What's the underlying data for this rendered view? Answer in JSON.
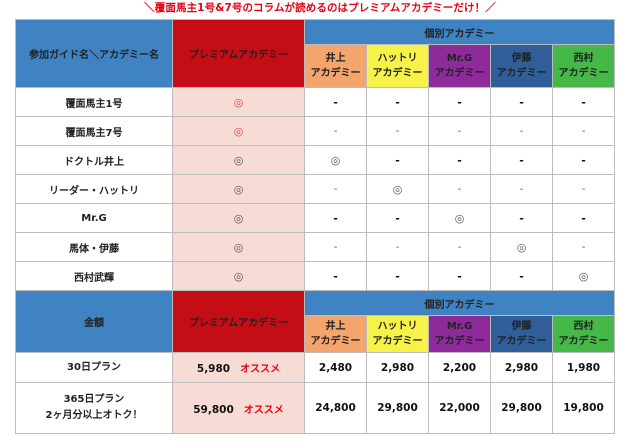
{
  "headline": "＼覆面馬主1号&7号のコラムが読めるのはプレミアムアカデミーだけ！／",
  "section1": {
    "corner_header": "参加ガイド名＼アカデミー名",
    "premium_header": "プレミアムアカデミー",
    "individual_header": "個別アカデミー",
    "categories": [
      {
        "line1": "井上",
        "line2": "アカデミー",
        "color": "#f4a46d"
      },
      {
        "line1": "ハットリ",
        "line2": "アカデミー",
        "color": "#f6f24a"
      },
      {
        "line1": "Mr.G",
        "line2": "アカデミー",
        "color": "#8e2a9a"
      },
      {
        "line1": "伊藤",
        "line2": "アカデミー",
        "color": "#2f5e99"
      },
      {
        "line1": "西村",
        "line2": "アカデミー",
        "color": "#46b848"
      }
    ],
    "rows": [
      {
        "label": "覆面馬主1号",
        "premium": "◎",
        "cells": [
          "-",
          "-",
          "-",
          "-",
          "-"
        ]
      },
      {
        "label": "覆面馬主7号",
        "premium": "◎",
        "cells": [
          "-",
          "-",
          "-",
          "-",
          "-"
        ]
      },
      {
        "label": "ドクトル井上",
        "premium": "◎",
        "cells": [
          "◎",
          "-",
          "-",
          "-",
          "-"
        ]
      },
      {
        "label": "リーダー・ハットリ",
        "premium": "◎",
        "cells": [
          "-",
          "◎",
          "-",
          "-",
          "-"
        ]
      },
      {
        "label": "Mr.G",
        "premium": "◎",
        "cells": [
          "-",
          "-",
          "◎",
          "-",
          "-"
        ]
      },
      {
        "label": "馬体・伊藤",
        "premium": "◎",
        "cells": [
          "-",
          "-",
          "-",
          "◎",
          "-"
        ]
      },
      {
        "label": "西村武輝",
        "premium": "◎",
        "cells": [
          "-",
          "-",
          "-",
          "-",
          "◎"
        ]
      }
    ]
  },
  "section2": {
    "corner_header": "金額",
    "premium_header": "プレミアムアカデミー",
    "individual_header": "個別アカデミー",
    "categories": [
      {
        "line1": "井上",
        "line2": "アカデミー"
      },
      {
        "line1": "ハットリ",
        "line2": "アカデミー"
      },
      {
        "line1": "Mr.G",
        "line2": "アカデミー"
      },
      {
        "line1": "伊藤",
        "line2": "アカデミー"
      },
      {
        "line1": "西村",
        "line2": "アカデミー"
      }
    ],
    "plans": [
      {
        "label_line1": "30日プラン",
        "label_line2": "",
        "premium_price": "5,980",
        "recommend": "オススメ",
        "prices": [
          "2,480",
          "2,980",
          "2,200",
          "2,980",
          "1,980"
        ]
      },
      {
        "label_line1": "365日プラン",
        "label_line2": "2ヶ月分以上オトク！",
        "premium_price": "59,800",
        "recommend": "オススメ",
        "prices": [
          "24,800",
          "29,800",
          "22,000",
          "29,800",
          "19,800"
        ]
      }
    ]
  },
  "colors": {
    "header_blue": "#3f83c2",
    "premium_red": "#c50d16",
    "premium_cell_pink": "#f6dcd4",
    "accent_red": "#e60012"
  }
}
